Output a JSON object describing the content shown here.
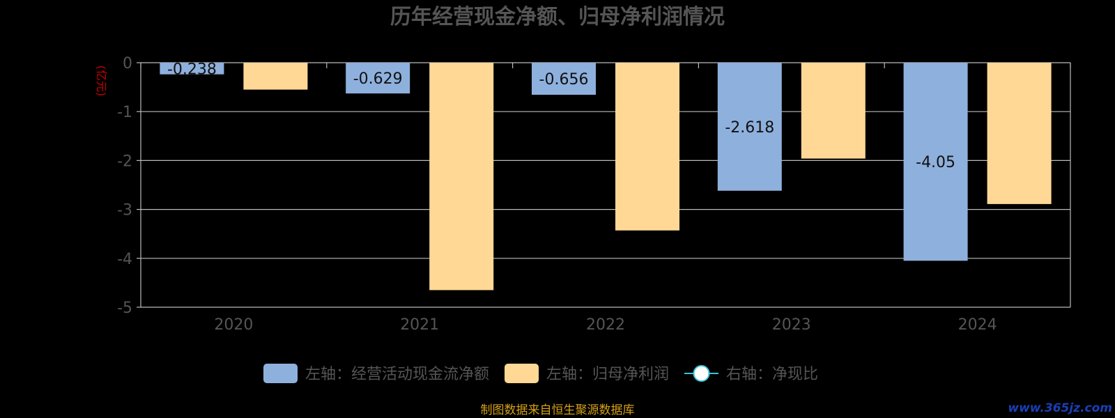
{
  "chart_data": {
    "type": "bar",
    "title": "历年经营现金净额、归母净利润情况",
    "y_unit_label": "(亿元)",
    "categories": [
      "2020",
      "2021",
      "2022",
      "2023",
      "2024"
    ],
    "series": [
      {
        "name": "左轴：经营活动现金流净额",
        "values": [
          -0.238,
          -0.629,
          -0.656,
          -2.618,
          -4.05
        ],
        "color": "#8eb0dd",
        "show_labels": true
      },
      {
        "name": "左轴：归母净利润",
        "values": [
          -0.55,
          -4.65,
          -3.43,
          -1.96,
          -2.89
        ],
        "color": "#ffd896",
        "show_labels": false
      }
    ],
    "line_series": [
      {
        "name": "右轴：净现比",
        "values": [],
        "color": "#3ac6d8"
      }
    ],
    "ylim": [
      -5,
      0
    ],
    "y_ticks": [
      0,
      -1,
      -2,
      -3,
      -4,
      -5
    ],
    "grid": true,
    "legend_position": "bottom"
  },
  "footer": {
    "source": "制图数据来自恒生聚源数据库",
    "watermark": "www.365jz.com"
  },
  "colors": {
    "title": "#555555",
    "axis": "#bbbbbb",
    "tick_label": "#555555",
    "data_label": "#111111",
    "legend_text": "#555555",
    "unit": "#cc0000",
    "source": "#d4a017",
    "watermark": "#1a3fb5"
  }
}
